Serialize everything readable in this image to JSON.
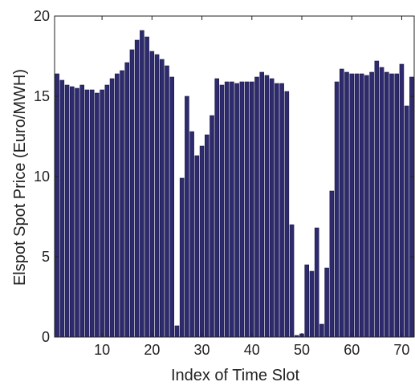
{
  "chart_data": {
    "type": "bar",
    "xlabel": "Index of Time Slot",
    "ylabel": "Elspot Spot Price (Euro/MWH)",
    "xlim": [
      0.5,
      72.5
    ],
    "ylim": [
      0,
      20
    ],
    "xticks": [
      10,
      20,
      30,
      40,
      50,
      60,
      70
    ],
    "yticks": [
      0,
      5,
      10,
      15,
      20
    ],
    "grid": false,
    "x": [
      1,
      2,
      3,
      4,
      5,
      6,
      7,
      8,
      9,
      10,
      11,
      12,
      13,
      14,
      15,
      16,
      17,
      18,
      19,
      20,
      21,
      22,
      23,
      24,
      25,
      26,
      27,
      28,
      29,
      30,
      31,
      32,
      33,
      34,
      35,
      36,
      37,
      38,
      39,
      40,
      41,
      42,
      43,
      44,
      45,
      46,
      47,
      48,
      49,
      50,
      51,
      52,
      53,
      54,
      55,
      56,
      57,
      58,
      59,
      60,
      61,
      62,
      63,
      64,
      65,
      66,
      67,
      68,
      69,
      70,
      71,
      72
    ],
    "values": [
      16.4,
      16.0,
      15.7,
      15.6,
      15.5,
      15.7,
      15.4,
      15.4,
      15.2,
      15.4,
      15.7,
      16.1,
      16.4,
      16.6,
      17.1,
      17.9,
      18.5,
      19.1,
      18.7,
      17.8,
      17.6,
      17.3,
      16.9,
      16.2,
      0.7,
      9.9,
      15.0,
      12.8,
      11.3,
      11.9,
      12.6,
      13.8,
      16.1,
      15.7,
      15.9,
      15.9,
      15.8,
      15.9,
      15.9,
      15.9,
      16.2,
      16.5,
      16.3,
      16.1,
      15.8,
      15.8,
      15.3,
      7.0,
      0.1,
      0.2,
      4.5,
      4.1,
      6.8,
      0.8,
      4.3,
      9.1,
      15.9,
      16.7,
      16.5,
      16.4,
      16.4,
      16.4,
      16.3,
      16.5,
      17.2,
      16.8,
      16.5,
      16.4,
      16.4,
      17.0,
      14.4,
      16.2
    ],
    "bar_color": "#2e2a6e",
    "bar_edge_color": "#1a1848",
    "axis_color": "#222222"
  }
}
